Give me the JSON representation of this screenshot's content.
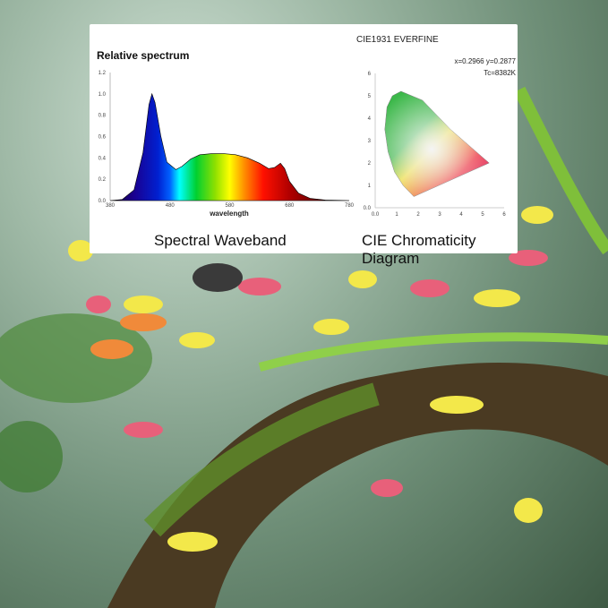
{
  "chart_data": [
    {
      "type": "area",
      "title": "Relative spectrum",
      "xlabel": "wavelength",
      "ylabel": "",
      "xlim": [
        380,
        780
      ],
      "ylim": [
        0,
        1.2
      ],
      "xticks": [
        380,
        480,
        580,
        680,
        780
      ],
      "yticks": [
        "0.0",
        "0.2",
        "0.4",
        "0.6",
        "0.8",
        "1.0",
        "1.2"
      ],
      "x": [
        380,
        400,
        420,
        435,
        445,
        450,
        455,
        465,
        475,
        490,
        500,
        515,
        530,
        550,
        570,
        590,
        610,
        630,
        645,
        655,
        665,
        672,
        680,
        695,
        715,
        740,
        780
      ],
      "y": [
        0,
        0.01,
        0.1,
        0.45,
        0.9,
        1.0,
        0.92,
        0.6,
        0.36,
        0.29,
        0.32,
        0.39,
        0.43,
        0.44,
        0.44,
        0.43,
        0.4,
        0.35,
        0.3,
        0.31,
        0.35,
        0.3,
        0.18,
        0.07,
        0.02,
        0.005,
        0
      ],
      "grid": false,
      "caption": "Spectral Waveband"
    },
    {
      "type": "scatter",
      "title": "CIE1931 EVERFINE",
      "readout_xy": "x=0.2966 y=0.2877",
      "readout_tc": "Tc=8382K",
      "xlim": [
        0,
        6
      ],
      "ylim": [
        0,
        6
      ],
      "xticks": [
        "0.0",
        "1",
        "2",
        "3",
        "4",
        "5",
        "6"
      ],
      "yticks": [
        "0.0",
        "1",
        "2",
        "3",
        "4",
        "5",
        "6"
      ],
      "gamut": [
        [
          1.2,
          5.2
        ],
        [
          0.8,
          5.0
        ],
        [
          0.55,
          4.5
        ],
        [
          0.45,
          3.5
        ],
        [
          0.6,
          2.5
        ],
        [
          0.9,
          1.6
        ],
        [
          1.3,
          1.0
        ],
        [
          1.8,
          0.5
        ],
        [
          5.3,
          2.0
        ],
        [
          3.5,
          3.5
        ],
        [
          2.2,
          4.8
        ]
      ],
      "grid": false,
      "caption": "CIE Chromaticity Diagram"
    }
  ]
}
